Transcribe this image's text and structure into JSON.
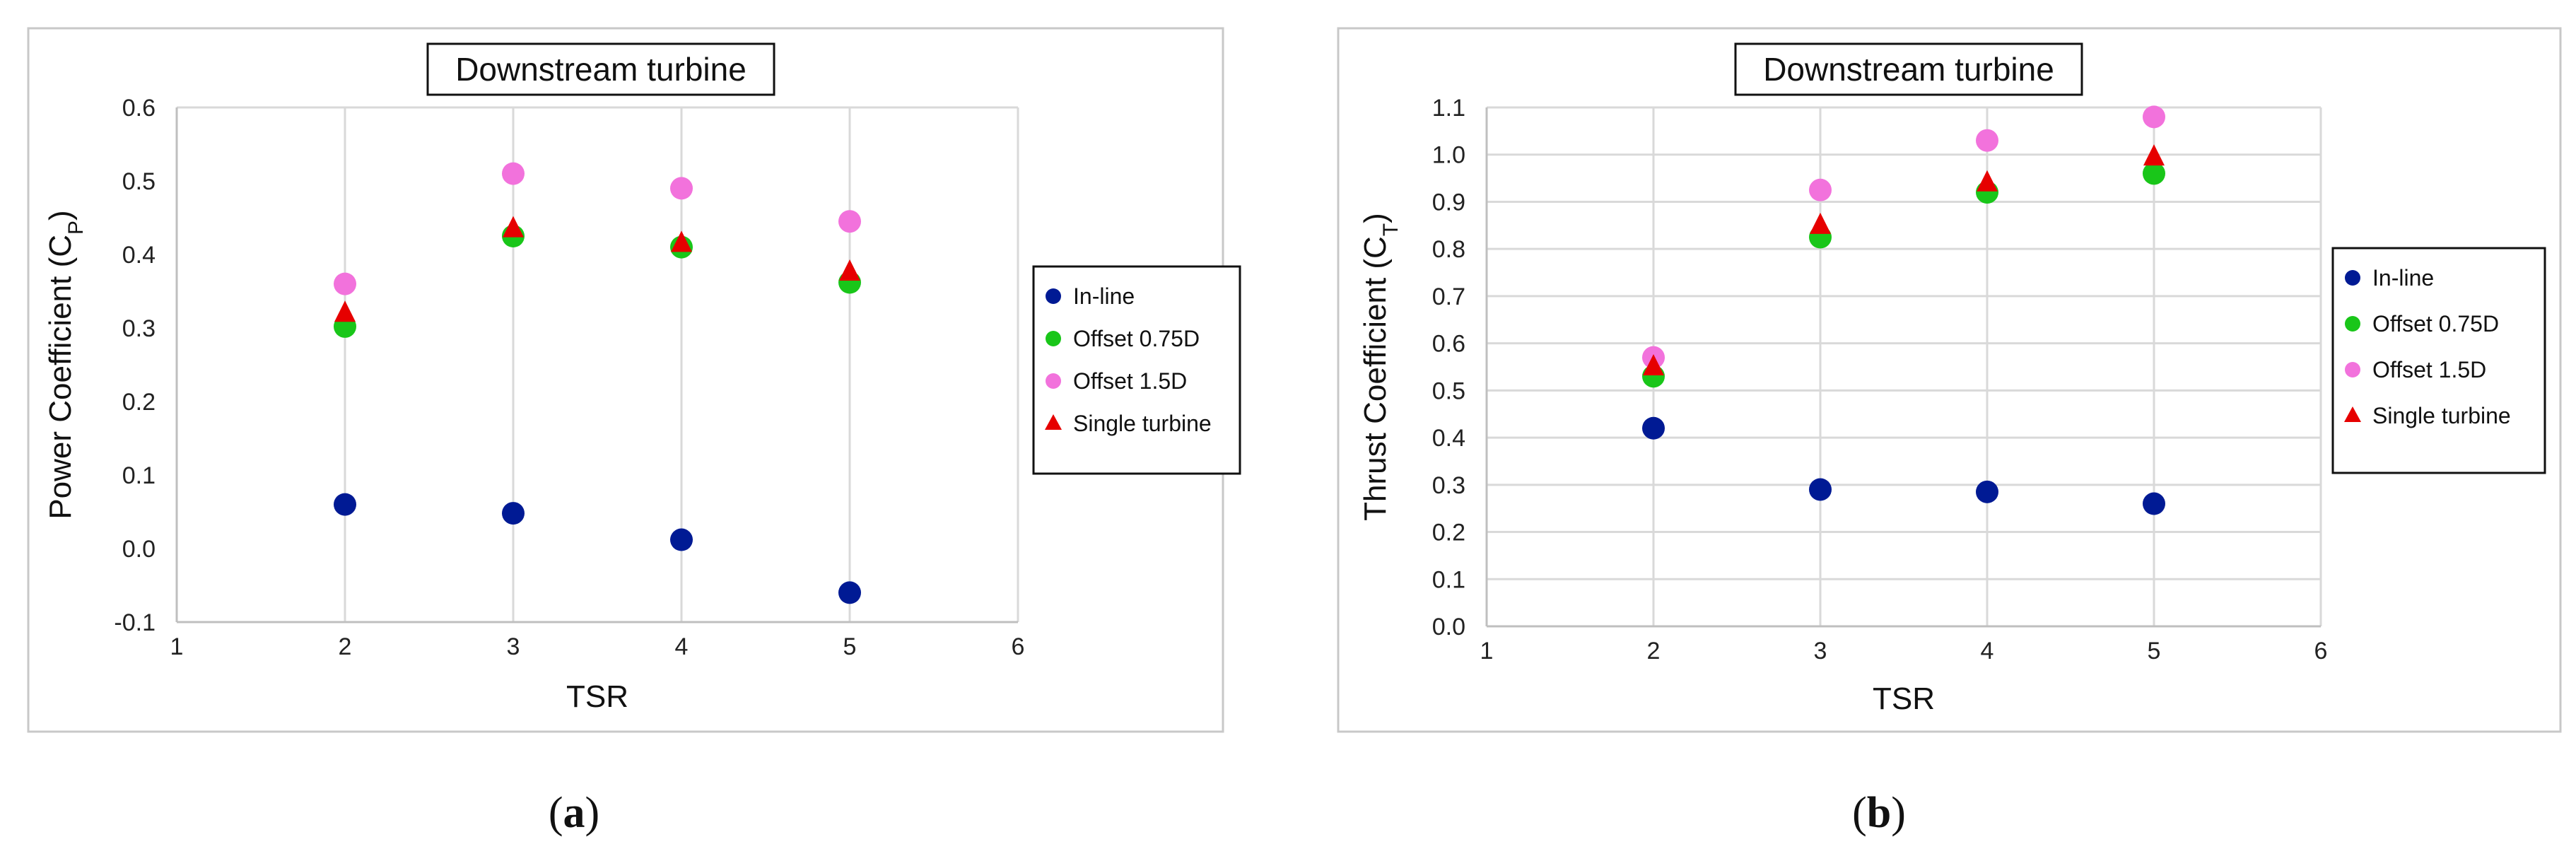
{
  "chart_data": [
    {
      "type": "scatter",
      "panel_label": "a",
      "title": "Downstream turbine",
      "xlabel": "TSR",
      "ylabel": "Power Coefficient (C",
      "ylabel_sub": "P",
      "ylabel_close": ")",
      "xlim": [
        1,
        6
      ],
      "ylim": [
        -0.1,
        0.6
      ],
      "xticks": [
        "1",
        "2",
        "3",
        "4",
        "5",
        "6"
      ],
      "yticks": [
        "-0.1",
        "0.0",
        "0.1",
        "0.2",
        "0.3",
        "0.4",
        "0.5",
        "0.6"
      ],
      "grid": "vertical",
      "legend_position": "right",
      "series": [
        {
          "name": "In-line",
          "marker": "circle",
          "color": "#001a94",
          "x": [
            2,
            3,
            4,
            5
          ],
          "y": [
            0.06,
            0.048,
            0.012,
            -0.06
          ]
        },
        {
          "name": "Offset 0.75D",
          "marker": "circle",
          "color": "#19c619",
          "x": [
            2,
            3,
            4,
            5
          ],
          "y": [
            0.302,
            0.425,
            0.41,
            0.362
          ]
        },
        {
          "name": "Offset 1.5D",
          "marker": "circle",
          "color": "#f272dc",
          "x": [
            2,
            3,
            4,
            5
          ],
          "y": [
            0.36,
            0.51,
            0.49,
            0.445
          ]
        },
        {
          "name": "Single turbine",
          "marker": "triangle",
          "color": "#e60000",
          "x": [
            2,
            3,
            4,
            5
          ],
          "y": [
            0.32,
            0.435,
            0.415,
            0.376
          ]
        }
      ]
    },
    {
      "type": "scatter",
      "panel_label": "b",
      "title": "Downstream turbine",
      "xlabel": "TSR",
      "ylabel": "Thrust Coefficient (C",
      "ylabel_sub": "T",
      "ylabel_close": ")",
      "xlim": [
        1,
        6
      ],
      "ylim": [
        0.0,
        1.1
      ],
      "xticks": [
        "1",
        "2",
        "3",
        "4",
        "5",
        "6"
      ],
      "yticks": [
        "0.0",
        "0.1",
        "0.2",
        "0.3",
        "0.4",
        "0.5",
        "0.6",
        "0.7",
        "0.8",
        "0.9",
        "1.0",
        "1.1"
      ],
      "grid": "both",
      "legend_position": "right",
      "series": [
        {
          "name": "In-line",
          "marker": "circle",
          "color": "#001a94",
          "x": [
            2,
            3,
            4,
            5
          ],
          "y": [
            0.42,
            0.29,
            0.285,
            0.26
          ]
        },
        {
          "name": "Offset 0.75D",
          "marker": "circle",
          "color": "#19c619",
          "x": [
            2,
            3,
            4,
            5
          ],
          "y": [
            0.53,
            0.825,
            0.92,
            0.96
          ]
        },
        {
          "name": "Offset 1.5D",
          "marker": "circle",
          "color": "#f272dc",
          "x": [
            2,
            3,
            4,
            5
          ],
          "y": [
            0.57,
            0.925,
            1.03,
            1.08
          ]
        },
        {
          "name": "Single turbine",
          "marker": "triangle",
          "color": "#e60000",
          "x": [
            2,
            3,
            4,
            5
          ],
          "y": [
            0.55,
            0.85,
            0.94,
            0.995
          ]
        }
      ]
    }
  ]
}
